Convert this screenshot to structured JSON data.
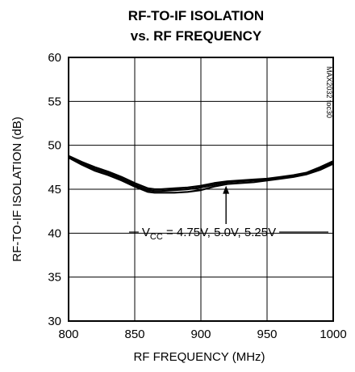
{
  "chart_data": {
    "type": "line",
    "title_line1": "RF-TO-IF ISOLATION",
    "title_line2": "vs. RF FREQUENCY",
    "xlabel": "RF FREQUENCY (MHz)",
    "ylabel": "RF-TO-IF ISOLATION (dB)",
    "xlim": [
      800,
      1000
    ],
    "ylim": [
      30,
      60
    ],
    "xticks": [
      800,
      850,
      900,
      950,
      1000
    ],
    "yticks": [
      30,
      35,
      40,
      45,
      50,
      55,
      60
    ],
    "grid": true,
    "figure_code": "MAX2032 toc30",
    "annotation": {
      "prefix": "V",
      "subscript": "CC",
      "text": " = 4.75V, 5.0V, 5.25V",
      "arrow_x": 919,
      "arrow_y": 45.5
    },
    "series": [
      {
        "x": [
          800,
          810,
          820,
          830,
          840,
          850,
          860,
          865,
          870,
          880,
          890,
          900,
          910,
          920,
          930,
          940,
          950,
          960,
          970,
          980,
          990,
          1000
        ],
        "y": [
          48.6,
          47.8,
          47.1,
          46.6,
          46.0,
          45.3,
          44.7,
          44.6,
          44.6,
          44.6,
          44.7,
          44.9,
          45.3,
          45.6,
          45.7,
          45.8,
          46.0,
          46.2,
          46.4,
          46.7,
          47.2,
          47.9
        ]
      },
      {
        "x": [
          800,
          810,
          820,
          830,
          840,
          850,
          860,
          865,
          870,
          880,
          890,
          900,
          910,
          920,
          930,
          940,
          950,
          960,
          970,
          980,
          990,
          1000
        ],
        "y": [
          48.7,
          47.9,
          47.3,
          46.8,
          46.2,
          45.5,
          44.9,
          44.8,
          44.8,
          44.9,
          45.0,
          45.2,
          45.5,
          45.8,
          45.9,
          46.0,
          46.1,
          46.3,
          46.5,
          46.8,
          47.4,
          48.0
        ]
      },
      {
        "x": [
          800,
          810,
          820,
          830,
          840,
          850,
          860,
          865,
          870,
          880,
          890,
          900,
          910,
          920,
          930,
          940,
          950,
          960,
          970,
          980,
          990,
          1000
        ],
        "y": [
          48.8,
          48.1,
          47.5,
          47.0,
          46.4,
          45.7,
          45.1,
          45.0,
          45.0,
          45.1,
          45.2,
          45.4,
          45.7,
          45.9,
          46.0,
          46.1,
          46.2,
          46.4,
          46.6,
          46.9,
          47.5,
          48.2
        ]
      }
    ]
  }
}
